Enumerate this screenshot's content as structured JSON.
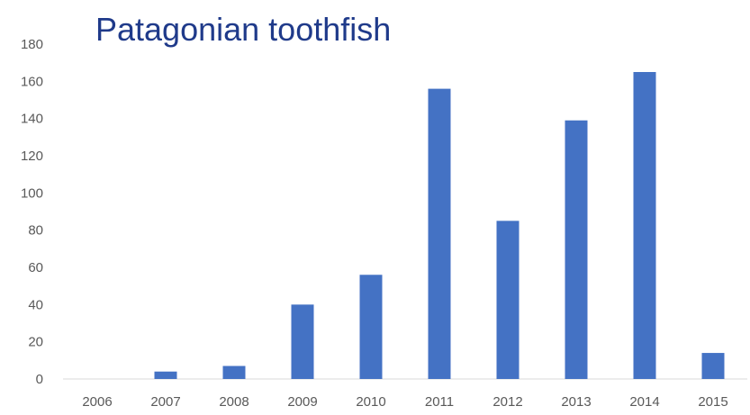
{
  "chart_data": {
    "type": "bar",
    "title": "Patagonian toothfish",
    "xlabel": "",
    "ylabel": "",
    "categories": [
      "2006",
      "2007",
      "2008",
      "2009",
      "2010",
      "2011",
      "2012",
      "2013",
      "2014",
      "2015"
    ],
    "values": [
      0,
      4,
      7,
      40,
      56,
      156,
      85,
      139,
      165,
      14
    ],
    "ylim": [
      0,
      180
    ],
    "yticks": [
      0,
      20,
      40,
      60,
      80,
      100,
      120,
      140,
      160,
      180
    ],
    "grid": false,
    "legend": "none",
    "bar_color": "#4472c4"
  }
}
